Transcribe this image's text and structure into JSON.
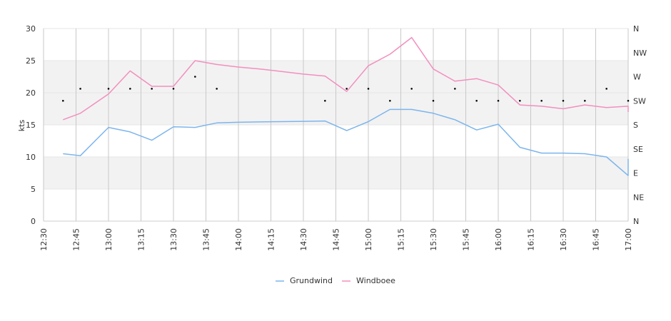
{
  "chart_data": {
    "type": "line",
    "ylabel": "kts",
    "xlabel": "",
    "title": "",
    "ylim": [
      0,
      30
    ],
    "yticks": [
      "0",
      "5",
      "10",
      "15",
      "20",
      "25",
      "30"
    ],
    "direction_ticks": [
      "N",
      "NE",
      "E",
      "SE",
      "S",
      "SW",
      "W",
      "NW",
      "N"
    ],
    "x_time_range": [
      "12:30",
      "17:00"
    ],
    "xticks": [
      "12:30",
      "12:45",
      "13:00",
      "13:15",
      "13:30",
      "13:45",
      "14:00",
      "14:15",
      "14:30",
      "14:45",
      "15:00",
      "15:15",
      "15:30",
      "15:45",
      "16:00",
      "16:15",
      "16:30",
      "16:45",
      "17:00"
    ],
    "grid": true,
    "legend": "bottom",
    "colors": {
      "grundwind": "#7cb5ec",
      "windboee": "#f28fbe",
      "band": "#f2f2f2",
      "grid": "#c8c8c8",
      "direction": "#000000"
    },
    "series": [
      {
        "name": "Grundwind",
        "x": [
          "12:39",
          "12:47",
          "13:00",
          "13:10",
          "13:20",
          "13:30",
          "13:40",
          "13:50",
          "14:00",
          "14:10",
          "14:20",
          "14:30",
          "14:40",
          "14:50",
          "15:00",
          "15:10",
          "15:20",
          "15:30",
          "15:40",
          "15:50",
          "16:00",
          "16:10",
          "16:20",
          "16:30",
          "16:40",
          "16:50",
          "17:00",
          "17:00"
        ],
        "values": [
          10.5,
          10.2,
          14.6,
          13.9,
          12.6,
          14.7,
          14.6,
          15.3,
          15.4,
          15.45,
          15.5,
          15.55,
          15.6,
          14.1,
          15.5,
          17.4,
          17.4,
          16.8,
          15.8,
          14.2,
          15.1,
          11.5,
          10.6,
          10.6,
          10.5,
          10.0,
          7.1,
          9.7
        ]
      },
      {
        "name": "Windboee",
        "x": [
          "12:39",
          "12:47",
          "13:00",
          "13:10",
          "13:20",
          "13:30",
          "13:40",
          "13:50",
          "14:00",
          "14:10",
          "14:20",
          "14:30",
          "14:40",
          "14:50",
          "15:00",
          "15:10",
          "15:20",
          "15:30",
          "15:40",
          "15:50",
          "16:00",
          "16:10",
          "16:20",
          "16:30",
          "16:40",
          "16:50",
          "17:00",
          "17:00"
        ],
        "values": [
          15.8,
          16.8,
          19.8,
          23.4,
          21.0,
          21.0,
          25.0,
          24.4,
          24.0,
          23.7,
          23.3,
          22.9,
          22.6,
          20.2,
          24.2,
          26.0,
          28.6,
          23.7,
          21.8,
          22.2,
          21.2,
          18.1,
          17.9,
          17.5,
          18.1,
          17.7,
          17.9,
          17.0
        ]
      }
    ],
    "direction": {
      "x": [
        "12:39",
        "12:47",
        "13:00",
        "13:10",
        "13:20",
        "13:30",
        "13:40",
        "13:50",
        "14:40",
        "14:50",
        "15:00",
        "15:10",
        "15:20",
        "15:30",
        "15:40",
        "15:50",
        "16:00",
        "16:10",
        "16:20",
        "16:30",
        "16:40",
        "16:50",
        "17:00"
      ],
      "values": [
        "SW",
        "WSW",
        "WSW",
        "WSW",
        "WSW",
        "WSW",
        "W",
        "WSW",
        "SW",
        "WSW",
        "WSW",
        "SW",
        "WSW",
        "SW",
        "WSW",
        "SW",
        "SW",
        "SW",
        "SW",
        "SW",
        "SW",
        "WSW",
        "SW"
      ]
    }
  }
}
